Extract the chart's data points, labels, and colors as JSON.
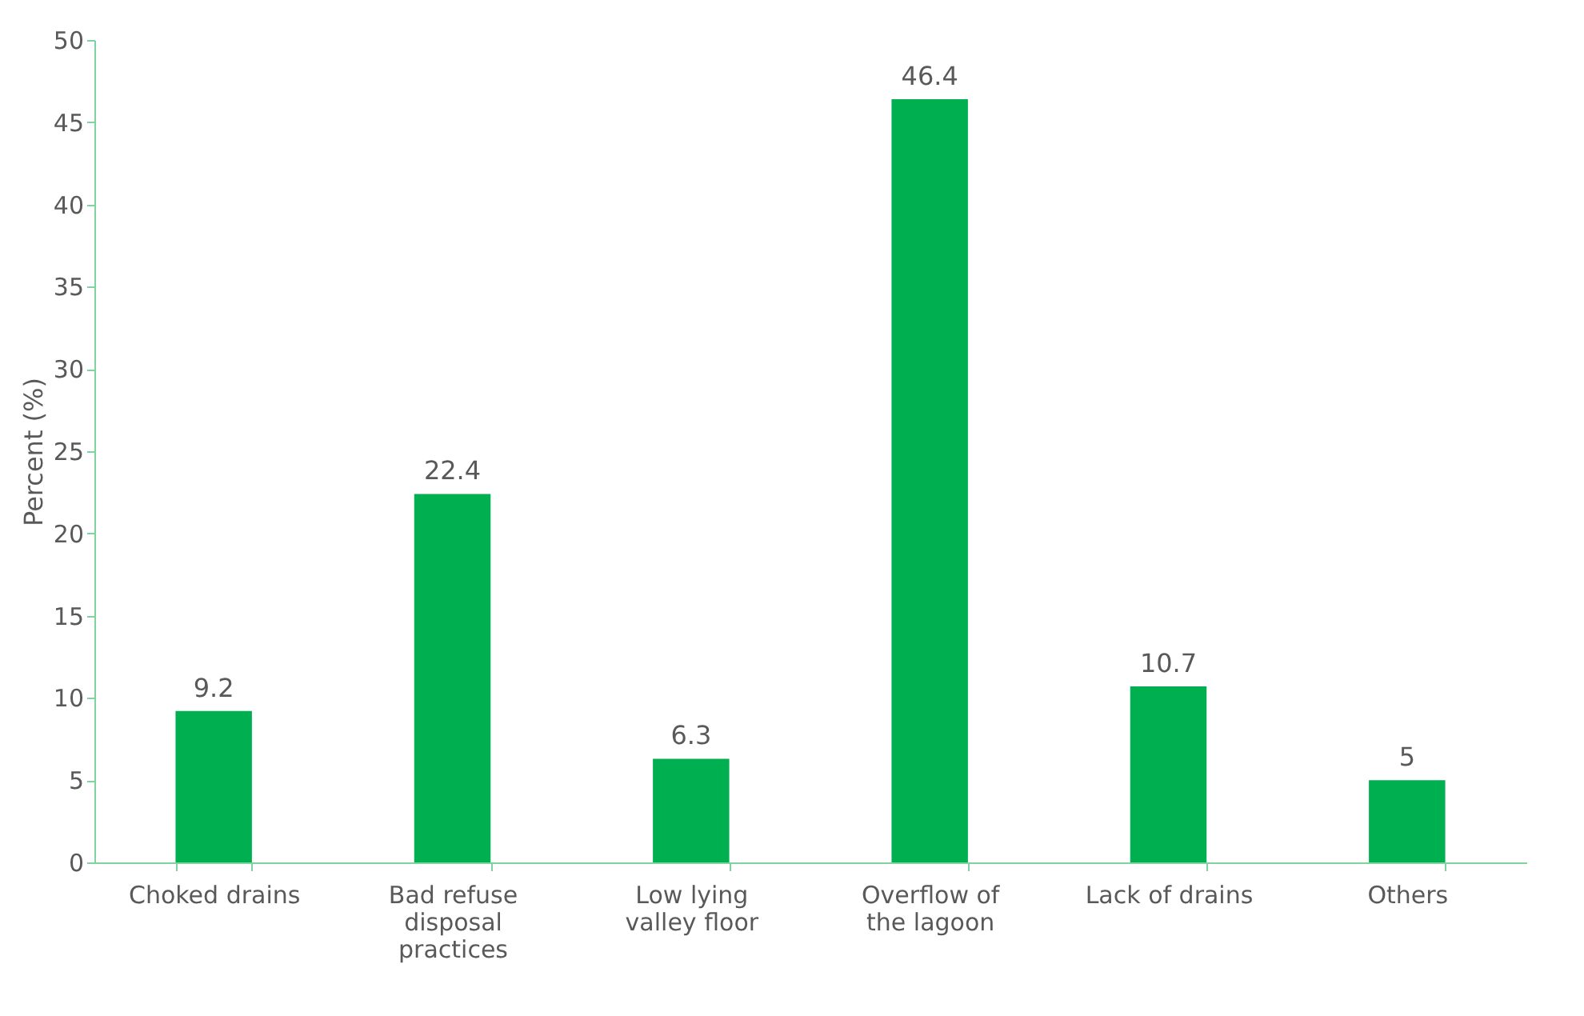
{
  "chart_data": {
    "type": "bar",
    "ylabel": "Percent (%)",
    "categories": [
      "Choked drains",
      "Bad refuse disposal practices",
      "Low lying valley floor",
      "Overflow of the lagoon",
      "Lack of drains",
      "Others"
    ],
    "values": [
      9.2,
      22.4,
      6.3,
      46.4,
      10.7,
      5
    ],
    "color": "#00b050",
    "ylim": [
      0,
      50
    ],
    "yticks": [
      0,
      5,
      10,
      15,
      20,
      25,
      30,
      35,
      40,
      45,
      50
    ],
    "data_labels": true,
    "grid": false
  }
}
